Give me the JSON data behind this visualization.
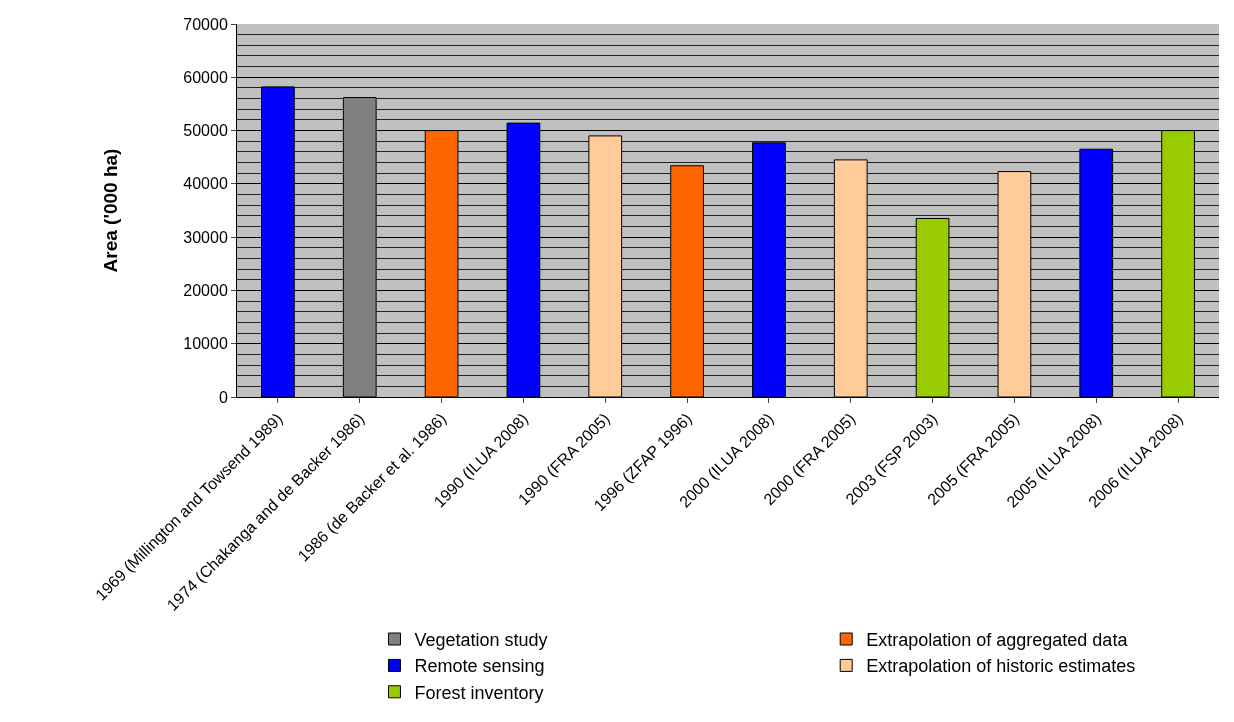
{
  "chart_data": {
    "type": "bar",
    "ylabel": "Area ('000 ha)",
    "categories": [
      "1969 (Millington and Towsend 1989)",
      "1974 (Chakanga and de Backer 1986)",
      "1986 (de Backer et al. 1986)",
      "1990 (ILUA 2008)",
      "1990 (FRA 2005)",
      "1996 (ZFAP 1996)",
      "2000 (ILUA 2008)",
      "2000 (FRA 2005)",
      "2003 (FSP 2003)",
      "2005 (FRA 2005)",
      "2005 (ILUA 2008)",
      "2006 (ILUA 2008)"
    ],
    "series": [
      {
        "name": "Vegetation study",
        "color": "#808080",
        "values": [
          null,
          56200,
          null,
          null,
          null,
          null,
          null,
          null,
          null,
          null,
          null,
          null
        ]
      },
      {
        "name": "Extrapolation of aggregated data",
        "color": "#ff6600",
        "values": [
          null,
          null,
          50000,
          null,
          null,
          43400,
          null,
          null,
          null,
          null,
          null,
          null
        ]
      },
      {
        "name": "Remote sensing",
        "color": "#0000ff",
        "values": [
          58200,
          null,
          null,
          51400,
          null,
          null,
          47700,
          null,
          null,
          null,
          46500,
          null
        ]
      },
      {
        "name": "Extrapolation of historic estimates",
        "color": "#ffcc99",
        "values": [
          null,
          null,
          null,
          null,
          49000,
          null,
          null,
          44500,
          null,
          42300,
          null,
          null
        ]
      },
      {
        "name": "Forest inventory",
        "color": "#99cc00",
        "values": [
          null,
          null,
          null,
          null,
          null,
          null,
          null,
          null,
          33500,
          null,
          null,
          50000
        ]
      }
    ],
    "ylim": [
      0,
      70000
    ],
    "yticks": [
      0,
      10000,
      20000,
      30000,
      40000,
      50000,
      60000,
      70000
    ],
    "grid": "y",
    "legend": "bottom"
  }
}
